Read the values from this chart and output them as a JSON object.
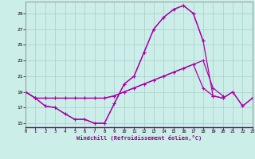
{
  "xlabel": "Windchill (Refroidissement éolien,°C)",
  "background_color": "#cceee8",
  "grid_color": "#aacccc",
  "line_color": "#aa00aa",
  "x_hours": [
    0,
    1,
    2,
    3,
    4,
    5,
    6,
    7,
    8,
    9,
    10,
    11,
    12,
    13,
    14,
    15,
    16,
    17,
    18,
    19,
    20,
    21,
    22,
    23
  ],
  "series1": [
    19,
    18.2,
    17.2,
    17,
    16.2,
    15.5,
    15.5,
    15,
    15,
    17.5,
    20,
    21,
    24,
    27,
    28.5,
    29.5,
    30,
    29,
    25.5,
    null,
    null,
    null,
    null,
    null
  ],
  "series2": [
    19,
    18.2,
    17.2,
    17,
    16.2,
    15.5,
    15.5,
    15,
    15,
    17.5,
    20,
    21,
    24,
    27,
    28.5,
    29.5,
    30,
    29,
    25.5,
    18.5,
    18.2,
    19,
    17.2,
    18.2
  ],
  "series3": [
    19,
    18.2,
    18.2,
    18.2,
    18.2,
    18.2,
    18.2,
    18.2,
    18.2,
    18.5,
    19,
    19.5,
    20,
    20.5,
    21,
    21.5,
    22,
    22.5,
    19.5,
    18.5,
    18.2,
    19,
    17.2,
    18.2
  ],
  "series4": [
    19,
    18.2,
    18.2,
    18.2,
    18.2,
    18.2,
    18.2,
    18.2,
    18.2,
    18.5,
    19,
    19.5,
    20,
    20.5,
    21,
    21.5,
    22,
    22.5,
    23,
    19.5,
    18.5,
    null,
    null,
    null
  ],
  "ylim": [
    14.5,
    30.5
  ],
  "yticks": [
    15,
    17,
    19,
    21,
    23,
    25,
    27,
    29
  ],
  "xlim": [
    0,
    23
  ]
}
